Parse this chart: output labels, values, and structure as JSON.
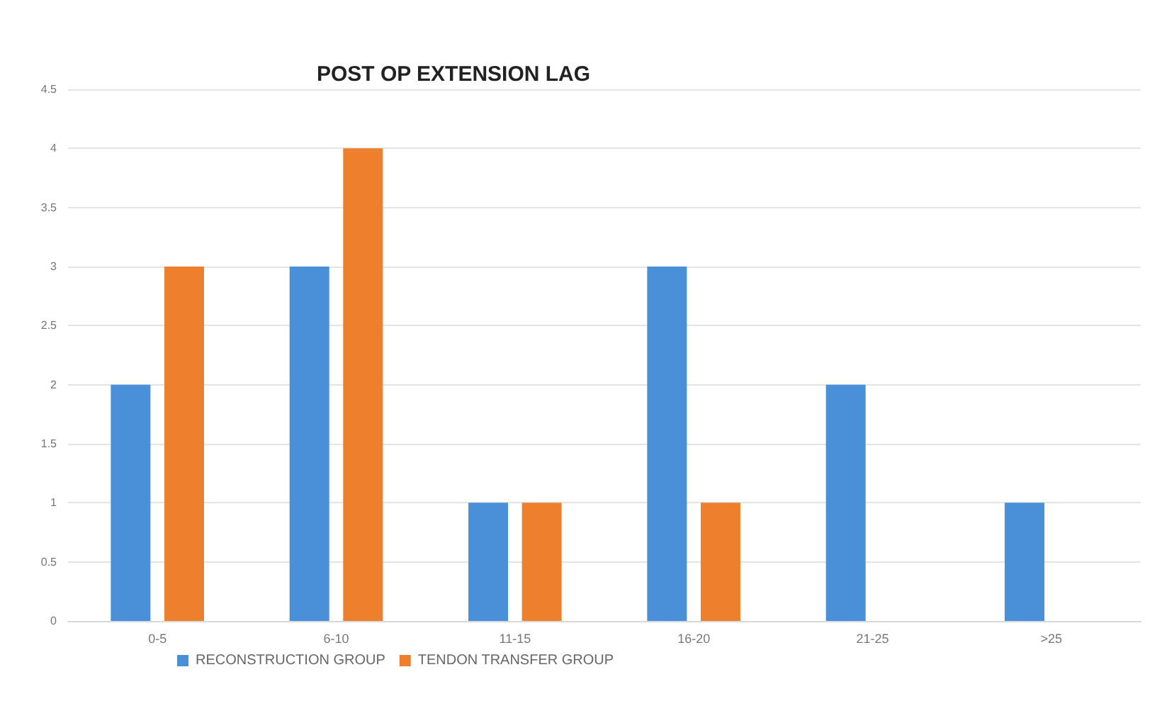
{
  "chart_data": {
    "type": "bar",
    "title": "POST OP EXTENSION LAG",
    "categories": [
      "0-5",
      "6-10",
      "11-15",
      "16-20",
      "21-25",
      ">25"
    ],
    "series": [
      {
        "name": "RECONSTRUCTION GROUP",
        "color": "#4a90d9",
        "values": [
          2,
          3,
          1,
          3,
          2,
          1
        ]
      },
      {
        "name": "TENDON TRANSFER GROUP",
        "color": "#ee7f2d",
        "values": [
          3,
          4,
          1,
          1,
          0,
          0
        ]
      }
    ],
    "ylim": [
      0,
      4.5
    ],
    "yticks": [
      0,
      0.5,
      1,
      1.5,
      2,
      2.5,
      3,
      3.5,
      4,
      4.5
    ],
    "grid": "y",
    "legend": "bottom left"
  }
}
